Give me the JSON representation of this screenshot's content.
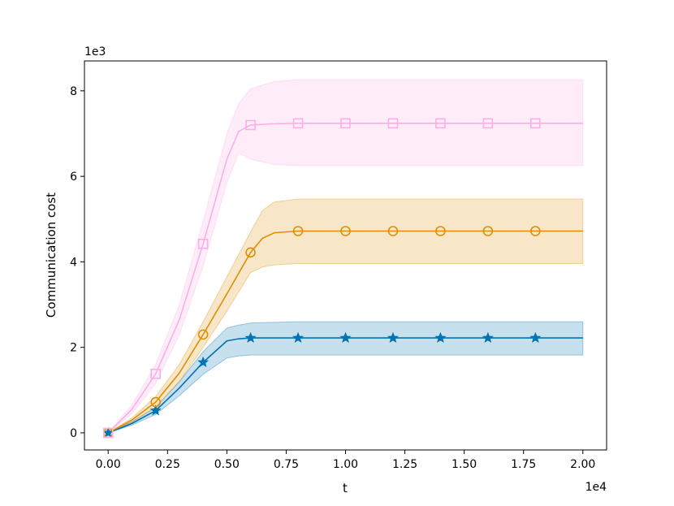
{
  "chart_data": {
    "type": "line",
    "title": "",
    "xlabel": "t",
    "ylabel": "Communication cost",
    "x_offset_label": "1e4",
    "y_offset_label": "1e3",
    "xlim": [
      -0.1,
      2.1
    ],
    "ylim": [
      -0.4,
      8.7
    ],
    "xticks": [
      0.0,
      0.25,
      0.5,
      0.75,
      1.0,
      1.25,
      1.5,
      1.75,
      2.0
    ],
    "xtick_labels": [
      "0.00",
      "0.25",
      "0.50",
      "0.75",
      "1.00",
      "1.25",
      "1.50",
      "1.75",
      "2.00"
    ],
    "yticks": [
      0,
      2,
      4,
      6,
      8
    ],
    "ytick_labels": [
      "0",
      "2",
      "4",
      "6",
      "8"
    ],
    "grid": false,
    "legend": "none",
    "series": [
      {
        "color": "#0173b2",
        "marker": "star",
        "x": [
          0.0,
          0.1,
          0.2,
          0.3,
          0.4,
          0.5,
          0.55,
          0.6,
          0.8,
          1.0,
          1.2,
          1.4,
          1.6,
          1.8,
          2.0
        ],
        "y": [
          0.0,
          0.22,
          0.52,
          1.05,
          1.65,
          2.15,
          2.2,
          2.22,
          2.22,
          2.22,
          2.22,
          2.22,
          2.22,
          2.22,
          2.22
        ],
        "lower": [
          0.0,
          0.18,
          0.43,
          0.87,
          1.37,
          1.75,
          1.8,
          1.82,
          1.82,
          1.82,
          1.82,
          1.82,
          1.82,
          1.82,
          1.82
        ],
        "upper": [
          0.0,
          0.26,
          0.6,
          1.2,
          1.9,
          2.45,
          2.52,
          2.57,
          2.6,
          2.6,
          2.6,
          2.6,
          2.6,
          2.6,
          2.6
        ],
        "marker_x": [
          0.0,
          0.2,
          0.4,
          0.6,
          0.8,
          1.0,
          1.2,
          1.4,
          1.6,
          1.8
        ]
      },
      {
        "color": "#de8f05",
        "marker": "circle",
        "x": [
          0.0,
          0.1,
          0.2,
          0.3,
          0.4,
          0.5,
          0.6,
          0.65,
          0.7,
          0.8,
          1.0,
          1.2,
          1.4,
          1.6,
          1.8,
          2.0
        ],
        "y": [
          0.0,
          0.3,
          0.72,
          1.4,
          2.3,
          3.25,
          4.22,
          4.55,
          4.68,
          4.72,
          4.72,
          4.72,
          4.72,
          4.72,
          4.72,
          4.72
        ],
        "lower": [
          0.0,
          0.25,
          0.6,
          1.2,
          2.0,
          2.85,
          3.75,
          3.88,
          3.93,
          3.96,
          3.96,
          3.96,
          3.96,
          3.96,
          3.96,
          3.96
        ],
        "upper": [
          0.0,
          0.35,
          0.85,
          1.6,
          2.6,
          3.65,
          4.7,
          5.2,
          5.4,
          5.47,
          5.47,
          5.47,
          5.47,
          5.47,
          5.47,
          5.47
        ],
        "marker_x": [
          0.0,
          0.2,
          0.4,
          0.6,
          0.8,
          1.0,
          1.2,
          1.4,
          1.6,
          1.8
        ]
      },
      {
        "color": "#fbafe4",
        "marker": "square",
        "x": [
          0.0,
          0.1,
          0.2,
          0.3,
          0.4,
          0.5,
          0.55,
          0.6,
          0.7,
          0.8,
          1.0,
          1.2,
          1.4,
          1.6,
          1.8,
          2.0
        ],
        "y": [
          0.0,
          0.55,
          1.38,
          2.65,
          4.42,
          6.4,
          7.05,
          7.2,
          7.23,
          7.24,
          7.24,
          7.24,
          7.24,
          7.24,
          7.24,
          7.24
        ],
        "lower": [
          0.0,
          0.45,
          1.15,
          2.3,
          3.9,
          5.85,
          6.55,
          6.4,
          6.28,
          6.25,
          6.25,
          6.25,
          6.25,
          6.25,
          6.25,
          6.25
        ],
        "upper": [
          0.0,
          0.65,
          1.6,
          3.0,
          4.95,
          7.0,
          7.7,
          8.05,
          8.22,
          8.26,
          8.26,
          8.26,
          8.26,
          8.26,
          8.26,
          8.26
        ],
        "marker_x": [
          0.0,
          0.2,
          0.4,
          0.6,
          0.8,
          1.0,
          1.2,
          1.4,
          1.6,
          1.8
        ]
      }
    ]
  }
}
